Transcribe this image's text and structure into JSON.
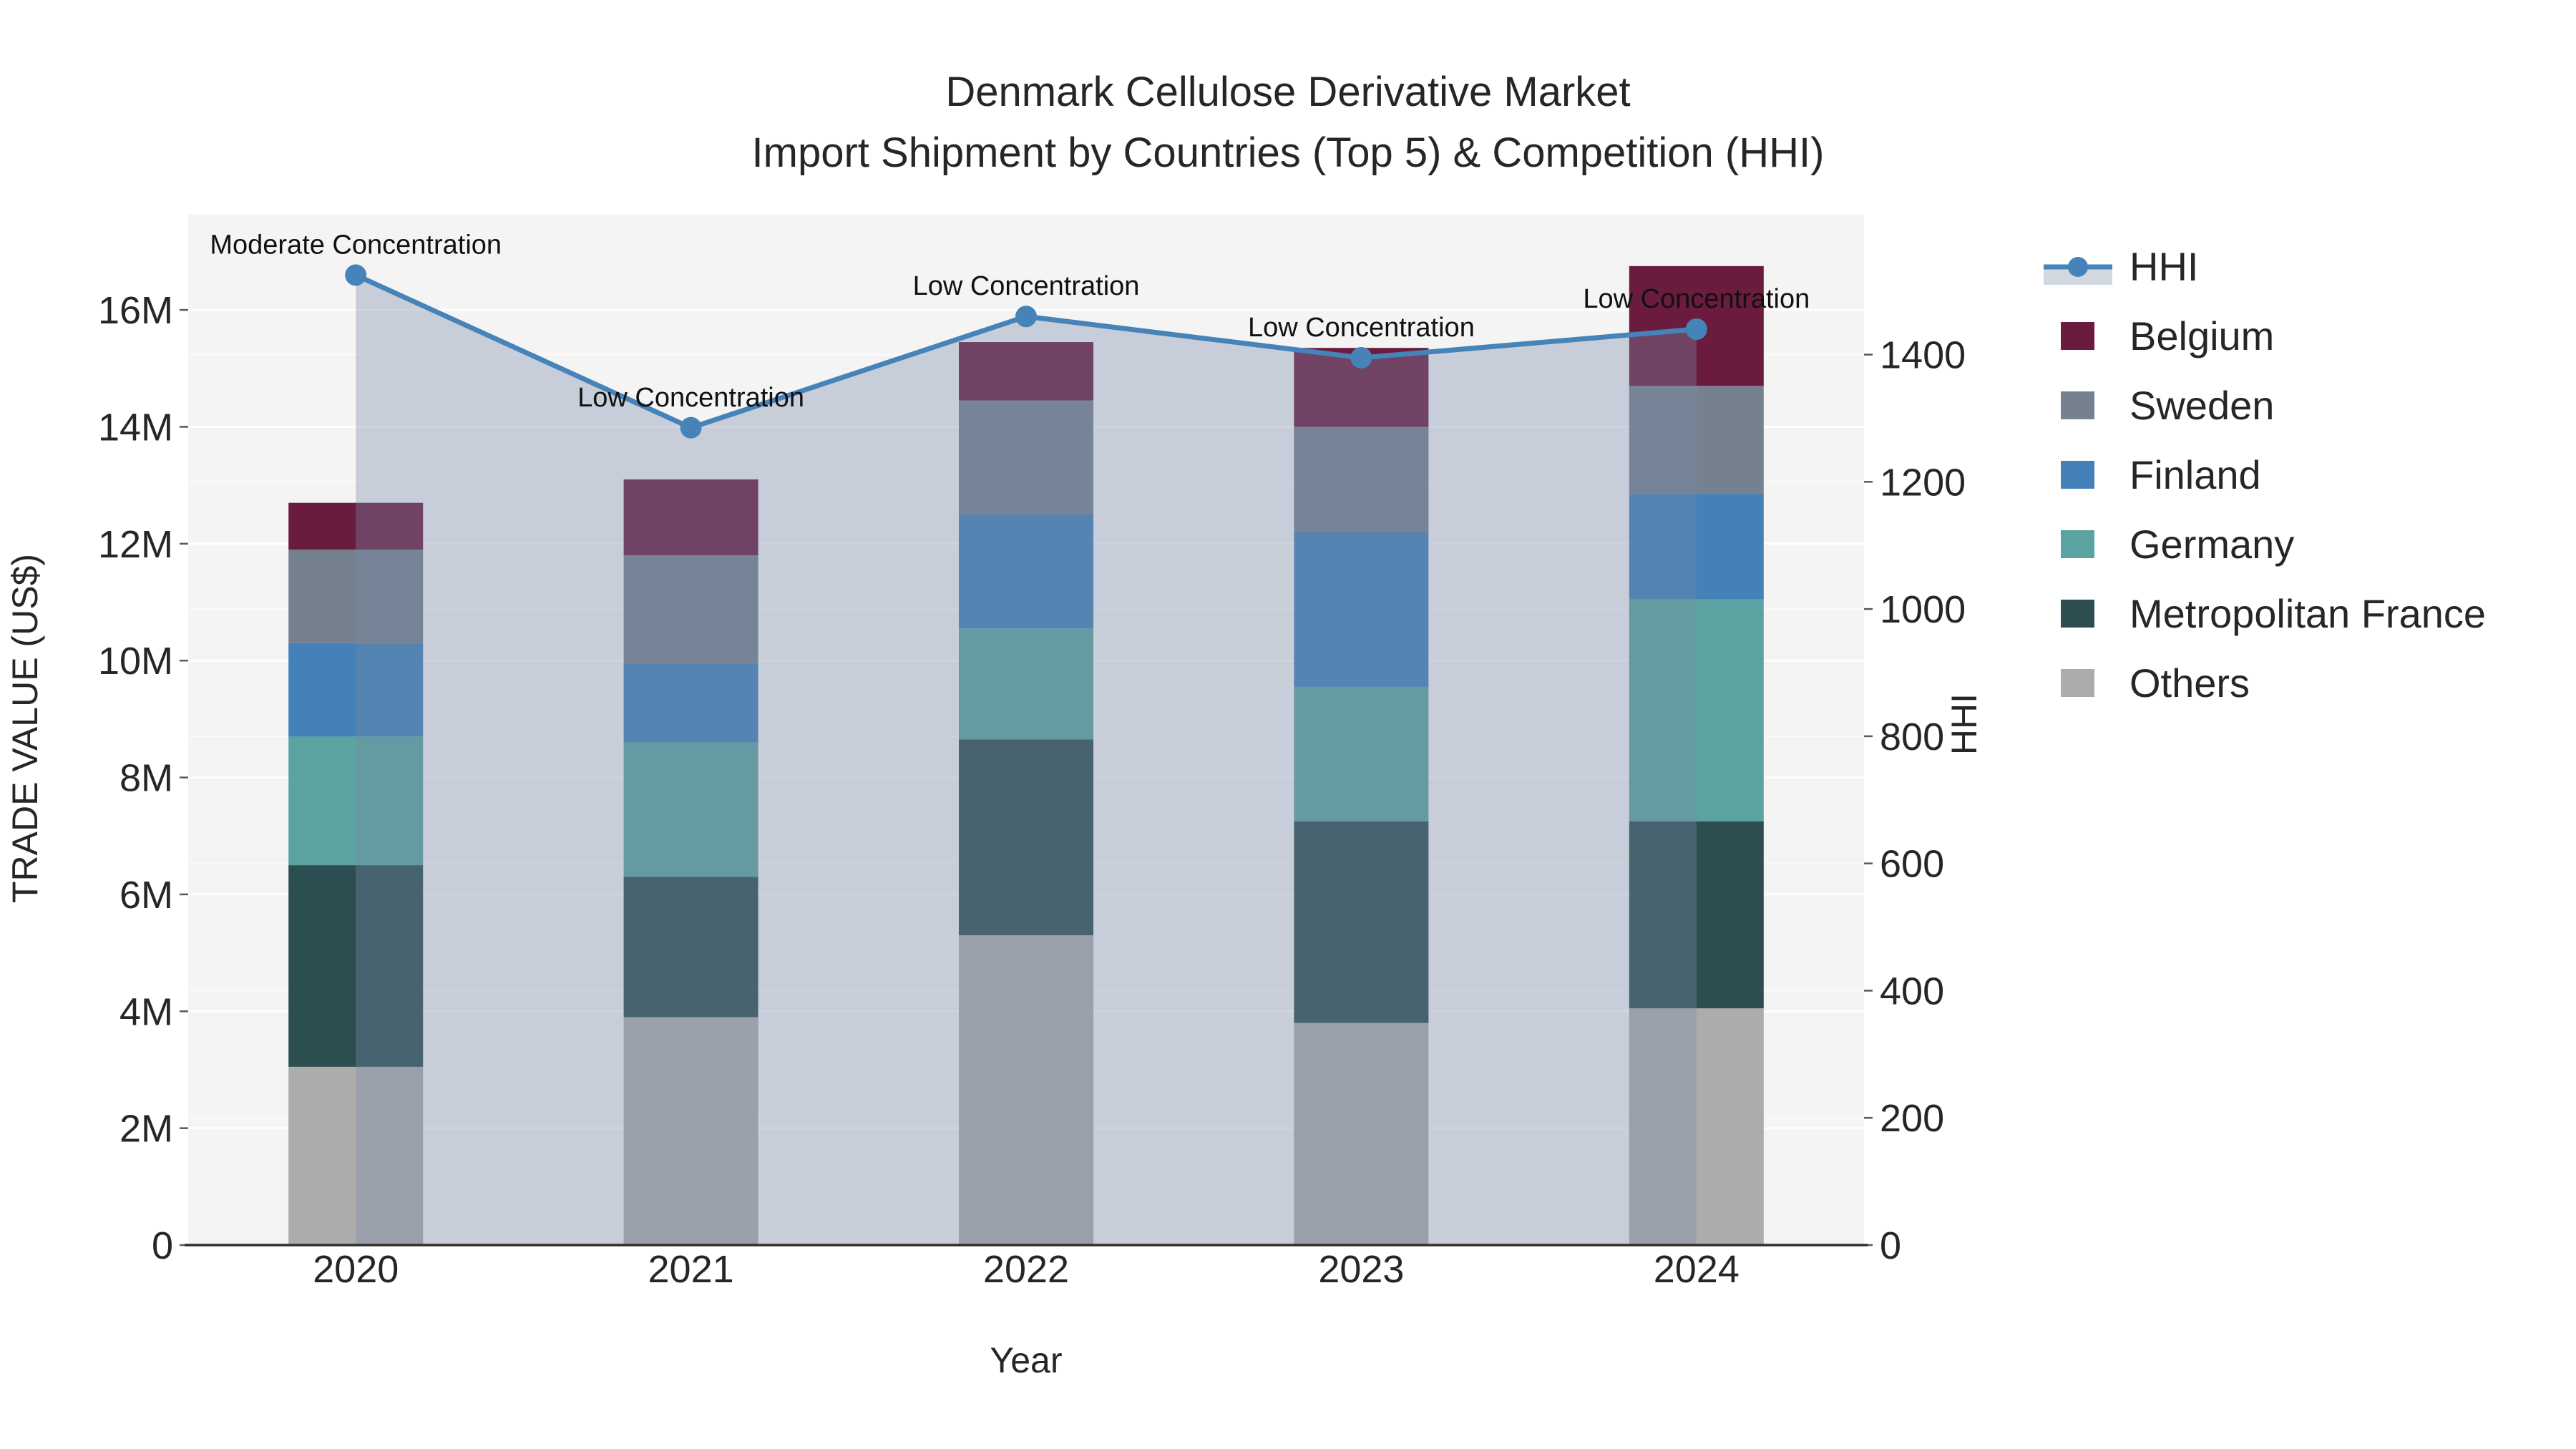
{
  "title": {
    "line1": "Denmark Cellulose Derivative Market",
    "line2": "Import Shipment by Countries (Top 5) & Competition (HHI)"
  },
  "axes": {
    "x_title": "Year",
    "y_left_title": "TRADE VALUE (US$)",
    "y_right_title": "HHI"
  },
  "colors": {
    "plot_background": "#f4f4f4",
    "grid_line": "#ffffff",
    "axis_line": "#2f2f2f",
    "hhi_line": "#4583b8",
    "hhi_area_fill": "rgba(123,139,170,0.36)",
    "legend_area_band": "#d2d8e0",
    "text": "#262626"
  },
  "chart_data": {
    "type": "stacked-bar+line",
    "categories": [
      "2020",
      "2021",
      "2022",
      "2023",
      "2024"
    ],
    "bar_value_unit": "million US$",
    "series": [
      {
        "name": "Others",
        "color": "#acacac",
        "values": [
          3.05,
          3.9,
          5.3,
          3.8,
          4.05
        ]
      },
      {
        "name": "Metropolitan France",
        "color": "#2c4e50",
        "values": [
          3.45,
          2.4,
          3.35,
          3.45,
          3.2
        ]
      },
      {
        "name": "Germany",
        "color": "#5ba3a0",
        "values": [
          2.2,
          2.3,
          1.9,
          2.3,
          3.8
        ]
      },
      {
        "name": "Finland",
        "color": "#4381b8",
        "values": [
          1.6,
          1.35,
          1.95,
          2.65,
          1.8
        ]
      },
      {
        "name": "Sweden",
        "color": "#76818f",
        "values": [
          1.6,
          1.85,
          1.95,
          1.8,
          1.85
        ]
      },
      {
        "name": "Belgium",
        "color": "#6b1c3e",
        "values": [
          0.8,
          1.3,
          1.0,
          1.35,
          2.05
        ]
      }
    ],
    "line_series": {
      "name": "HHI",
      "color": "#4583b8",
      "area_fill": "rgba(123,139,170,0.36)",
      "values": [
        1525,
        1285,
        1460,
        1395,
        1440
      ]
    },
    "annotations": [
      {
        "category": "2020",
        "text": "Moderate Concentration"
      },
      {
        "category": "2021",
        "text": "Low Concentration"
      },
      {
        "category": "2022",
        "text": "Low Concentration"
      },
      {
        "category": "2023",
        "text": "Low Concentration"
      },
      {
        "category": "2024",
        "text": "Low Concentration"
      }
    ],
    "y_left": {
      "label": "TRADE VALUE (US$)",
      "tick_values": [
        0,
        2,
        4,
        6,
        8,
        10,
        12,
        14,
        16
      ],
      "tick_labels": [
        "0",
        "2M",
        "4M",
        "6M",
        "8M",
        "10M",
        "12M",
        "14M",
        "16M"
      ],
      "range_max": 17.63
    },
    "y_right": {
      "label": "HHI",
      "tick_values": [
        0,
        200,
        400,
        600,
        800,
        1000,
        1200,
        1400
      ],
      "tick_labels": [
        "0",
        "200",
        "400",
        "600",
        "800",
        "1000",
        "1200",
        "1400"
      ],
      "range_max": 1620
    },
    "x_label": "Year",
    "legend_order": [
      "HHI",
      "Belgium",
      "Sweden",
      "Finland",
      "Germany",
      "Metropolitan France",
      "Others"
    ],
    "grid": true,
    "legend_position": "right"
  }
}
